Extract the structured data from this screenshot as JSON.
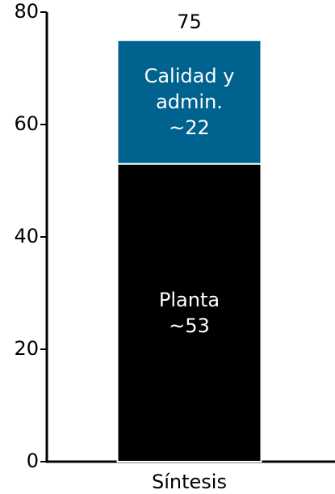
{
  "chart_data": {
    "type": "stacked_bar",
    "categories": [
      "Síntesis"
    ],
    "series": [
      {
        "name": "Planta",
        "color": "#000000",
        "values": [
          53
        ],
        "value_labels": [
          "~53"
        ],
        "text_color": "#ffffff"
      },
      {
        "name": "Calidad y admin.",
        "color": "#00628f",
        "values": [
          22
        ],
        "value_labels": [
          "~22"
        ],
        "text_color": "#ffffff"
      }
    ],
    "totals": [
      75
    ],
    "ylim": [
      0,
      80
    ],
    "yticks": [
      0,
      20,
      40,
      60,
      80
    ],
    "grid": false
  }
}
